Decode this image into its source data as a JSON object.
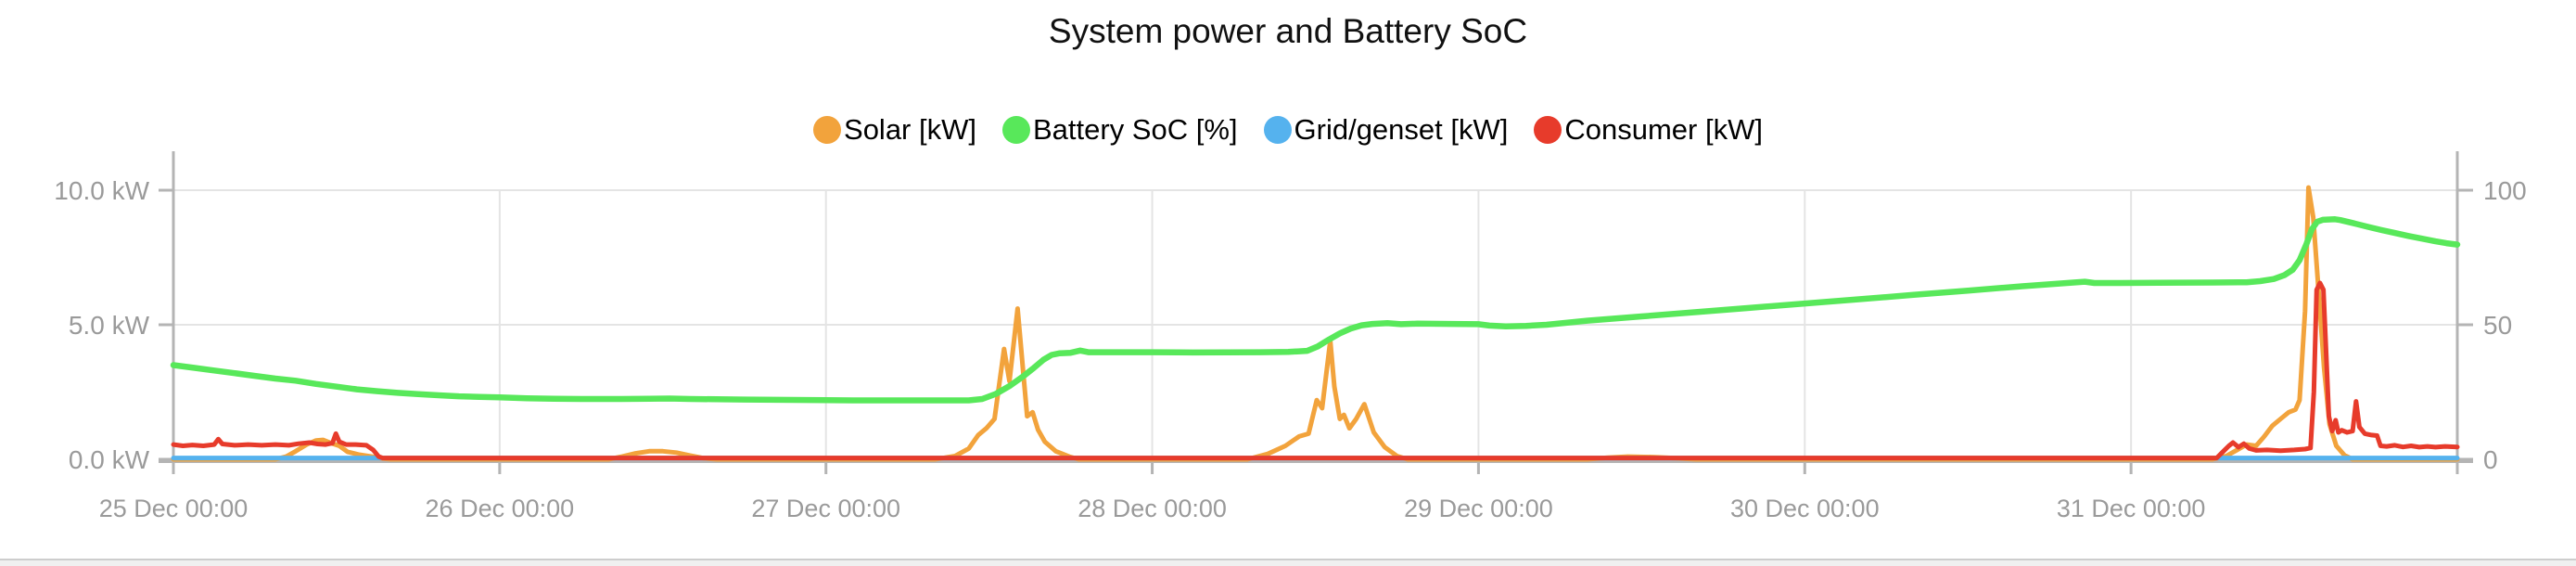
{
  "title": "System power and Battery SoC",
  "legend": {
    "items": [
      {
        "label": "Solar [kW]",
        "color": "#F2A33C"
      },
      {
        "label": "Battery SoC [%]",
        "color": "#58E85A"
      },
      {
        "label": "Grid/genset [kW]",
        "color": "#55B2EE"
      },
      {
        "label": "Consumer [kW]",
        "color": "#E73B2B"
      }
    ]
  },
  "chart_data": {
    "type": "line",
    "title": "System power and Battery SoC",
    "grid": true,
    "legend_position": "top",
    "colors": {
      "grid": "#e4e4e4",
      "axis": "#b4b4b4",
      "tick_label": "#9a9a9a"
    },
    "x_axis": {
      "domain_hours": 168,
      "ticks": [
        {
          "hour": 0,
          "label": "25 Dec 00:00"
        },
        {
          "hour": 24,
          "label": "26 Dec 00:00"
        },
        {
          "hour": 48,
          "label": "27 Dec 00:00"
        },
        {
          "hour": 72,
          "label": "28 Dec 00:00"
        },
        {
          "hour": 96,
          "label": "29 Dec 00:00"
        },
        {
          "hour": 120,
          "label": "30 Dec 00:00"
        },
        {
          "hour": 144,
          "label": "31 Dec 00:00"
        }
      ]
    },
    "left_axis": {
      "unit": "kW",
      "min": 0,
      "max": 10,
      "ticks": [
        {
          "value": 10,
          "label": "10.0 kW"
        },
        {
          "value": 5,
          "label": "5.0 kW"
        },
        {
          "value": 0,
          "label": "0.0 kW"
        }
      ]
    },
    "right_axis": {
      "unit": "%",
      "min": 0,
      "max": 100,
      "ticks": [
        {
          "value": 100,
          "label": "100"
        },
        {
          "value": 50,
          "label": "50"
        },
        {
          "value": 0,
          "label": "0"
        }
      ]
    },
    "series": [
      {
        "name": "Solar [kW]",
        "id": "solar",
        "axis": "left",
        "color": "#F2A33C",
        "width": 5,
        "points": [
          [
            0,
            0
          ],
          [
            7.5,
            0
          ],
          [
            8.3,
            0.1
          ],
          [
            9,
            0.3
          ],
          [
            9.8,
            0.55
          ],
          [
            10.5,
            0.7
          ],
          [
            11,
            0.72
          ],
          [
            11.6,
            0.6
          ],
          [
            12.2,
            0.5
          ],
          [
            12.8,
            0.28
          ],
          [
            13.6,
            0.18
          ],
          [
            14.6,
            0.1
          ],
          [
            15.4,
            0.03
          ],
          [
            16,
            0
          ],
          [
            32,
            0
          ],
          [
            33,
            0.1
          ],
          [
            34,
            0.22
          ],
          [
            35,
            0.3
          ],
          [
            36,
            0.3
          ],
          [
            37,
            0.25
          ],
          [
            38,
            0.14
          ],
          [
            39,
            0.04
          ],
          [
            40,
            0
          ],
          [
            56,
            0
          ],
          [
            57.5,
            0.12
          ],
          [
            58.5,
            0.4
          ],
          [
            59.2,
            0.9
          ],
          [
            59.8,
            1.15
          ],
          [
            60.4,
            1.5
          ],
          [
            61.1,
            4.1
          ],
          [
            61.5,
            2.9
          ],
          [
            62.1,
            5.6
          ],
          [
            62.5,
            3.3
          ],
          [
            62.8,
            1.6
          ],
          [
            63.2,
            1.75
          ],
          [
            63.6,
            1.1
          ],
          [
            64.1,
            0.65
          ],
          [
            64.9,
            0.3
          ],
          [
            65.9,
            0.1
          ],
          [
            66.6,
            0
          ],
          [
            79,
            0
          ],
          [
            80.5,
            0.2
          ],
          [
            81.8,
            0.5
          ],
          [
            82.8,
            0.85
          ],
          [
            83.5,
            0.95
          ],
          [
            84.1,
            2.2
          ],
          [
            84.5,
            1.9
          ],
          [
            85.1,
            4.4
          ],
          [
            85.4,
            2.7
          ],
          [
            85.8,
            1.5
          ],
          [
            86.1,
            1.65
          ],
          [
            86.5,
            1.15
          ],
          [
            87,
            1.5
          ],
          [
            87.6,
            2.05
          ],
          [
            88.3,
            1.0
          ],
          [
            89.1,
            0.45
          ],
          [
            90,
            0.12
          ],
          [
            90.8,
            0
          ],
          [
            104,
            0
          ],
          [
            105.5,
            0.06
          ],
          [
            107,
            0.1
          ],
          [
            109,
            0.08
          ],
          [
            110.5,
            0.04
          ],
          [
            112,
            0
          ],
          [
            150,
            0
          ],
          [
            151,
            0.12
          ],
          [
            151.8,
            0.35
          ],
          [
            152.5,
            0.55
          ],
          [
            153.2,
            0.5
          ],
          [
            153.8,
            0.85
          ],
          [
            154.4,
            1.25
          ],
          [
            155,
            1.5
          ],
          [
            155.6,
            1.75
          ],
          [
            156.1,
            1.85
          ],
          [
            156.4,
            2.2
          ],
          [
            156.8,
            5.5
          ],
          [
            157.05,
            10.1
          ],
          [
            157.4,
            9.0
          ],
          [
            157.8,
            6.2
          ],
          [
            158.2,
            3.4
          ],
          [
            158.6,
            1.3
          ],
          [
            159.1,
            0.5
          ],
          [
            159.7,
            0.15
          ],
          [
            160.3,
            0
          ],
          [
            168,
            0
          ]
        ]
      },
      {
        "name": "Battery SoC [%]",
        "id": "battery-soc",
        "axis": "right",
        "color": "#58E85A",
        "width": 6.5,
        "points": [
          [
            0,
            35
          ],
          [
            1.5,
            34
          ],
          [
            3,
            33
          ],
          [
            4.5,
            32
          ],
          [
            6,
            31
          ],
          [
            7.5,
            30
          ],
          [
            9,
            29.2
          ],
          [
            10.5,
            28
          ],
          [
            12,
            27
          ],
          [
            13.5,
            26
          ],
          [
            15,
            25.3
          ],
          [
            16.5,
            24.7
          ],
          [
            18,
            24.2
          ],
          [
            19.5,
            23.8
          ],
          [
            21,
            23.4
          ],
          [
            22.5,
            23.2
          ],
          [
            24,
            23
          ],
          [
            26,
            22.7
          ],
          [
            28,
            22.5
          ],
          [
            30,
            22.4
          ],
          [
            33,
            22.4
          ],
          [
            35,
            22.5
          ],
          [
            36.5,
            22.6
          ],
          [
            38,
            22.4
          ],
          [
            42,
            22.2
          ],
          [
            48,
            22
          ],
          [
            50,
            21.9
          ],
          [
            56,
            21.9
          ],
          [
            58.5,
            21.9
          ],
          [
            59.5,
            22.4
          ],
          [
            60.5,
            24.3
          ],
          [
            61.5,
            27.2
          ],
          [
            62.5,
            30.8
          ],
          [
            63.3,
            34
          ],
          [
            64,
            37
          ],
          [
            64.6,
            38.8
          ],
          [
            65.2,
            39.4
          ],
          [
            66,
            39.6
          ],
          [
            66.7,
            40.4
          ],
          [
            67.3,
            39.8
          ],
          [
            68,
            39.8
          ],
          [
            72,
            39.8
          ],
          [
            75,
            39.7
          ],
          [
            80,
            39.8
          ],
          [
            82,
            39.9
          ],
          [
            83.4,
            40.3
          ],
          [
            84.2,
            42
          ],
          [
            85,
            44.5
          ],
          [
            85.8,
            46.8
          ],
          [
            86.6,
            48.6
          ],
          [
            87.4,
            49.8
          ],
          [
            88.2,
            50.3
          ],
          [
            89.3,
            50.6
          ],
          [
            90.3,
            50.2
          ],
          [
            91.5,
            50.4
          ],
          [
            94,
            50.3
          ],
          [
            96,
            50.2
          ],
          [
            96.8,
            49.7
          ],
          [
            98,
            49.4
          ],
          [
            99.5,
            49.6
          ],
          [
            101,
            50
          ],
          [
            104,
            51.5
          ],
          [
            108,
            53.1
          ],
          [
            112,
            54.7
          ],
          [
            116,
            56.3
          ],
          [
            120,
            57.9
          ],
          [
            124,
            59.5
          ],
          [
            128,
            61.1
          ],
          [
            132,
            62.7
          ],
          [
            136,
            64.3
          ],
          [
            140,
            65.8
          ],
          [
            140.6,
            66
          ],
          [
            141.3,
            65.5
          ],
          [
            143,
            65.5
          ],
          [
            146,
            65.6
          ],
          [
            150,
            65.7
          ],
          [
            152.5,
            65.8
          ],
          [
            153.5,
            66.2
          ],
          [
            154.5,
            67
          ],
          [
            155.3,
            68.5
          ],
          [
            155.9,
            70.5
          ],
          [
            156.4,
            74
          ],
          [
            156.9,
            80
          ],
          [
            157.3,
            85.5
          ],
          [
            157.7,
            88.3
          ],
          [
            158.1,
            89
          ],
          [
            159,
            89.2
          ],
          [
            159.4,
            88.9
          ],
          [
            160.4,
            87.7
          ],
          [
            161.4,
            86.4
          ],
          [
            162.4,
            85.2
          ],
          [
            163.4,
            84.1
          ],
          [
            164.4,
            83
          ],
          [
            165.4,
            82
          ],
          [
            166.4,
            81
          ],
          [
            167.2,
            80.3
          ],
          [
            168,
            79.8
          ]
        ]
      },
      {
        "name": "Grid/genset [kW]",
        "id": "grid-genset",
        "axis": "left",
        "color": "#55B2EE",
        "width": 5,
        "points": [
          [
            0,
            0.05
          ],
          [
            168,
            0.05
          ]
        ]
      },
      {
        "name": "Consumer [kW]",
        "id": "consumer",
        "axis": "left",
        "color": "#E73B2B",
        "width": 5,
        "points": [
          [
            0,
            0.55
          ],
          [
            0.7,
            0.5
          ],
          [
            1.4,
            0.53
          ],
          [
            2.2,
            0.5
          ],
          [
            3,
            0.55
          ],
          [
            3.3,
            0.75
          ],
          [
            3.6,
            0.57
          ],
          [
            4.5,
            0.52
          ],
          [
            5.5,
            0.55
          ],
          [
            6.5,
            0.52
          ],
          [
            7.5,
            0.55
          ],
          [
            8.5,
            0.52
          ],
          [
            9.2,
            0.58
          ],
          [
            10,
            0.62
          ],
          [
            10.6,
            0.57
          ],
          [
            11.2,
            0.55
          ],
          [
            11.7,
            0.6
          ],
          [
            11.95,
            0.95
          ],
          [
            12.2,
            0.65
          ],
          [
            12.7,
            0.55
          ],
          [
            13.4,
            0.55
          ],
          [
            14.2,
            0.52
          ],
          [
            14.7,
            0.35
          ],
          [
            15.1,
            0.1
          ],
          [
            15.4,
            0.05
          ],
          [
            16,
            0.05
          ],
          [
            40,
            0.05
          ],
          [
            80,
            0.05
          ],
          [
            120,
            0.05
          ],
          [
            150.3,
            0.05
          ],
          [
            150.8,
            0.3
          ],
          [
            151.2,
            0.5
          ],
          [
            151.5,
            0.62
          ],
          [
            151.9,
            0.45
          ],
          [
            152.3,
            0.58
          ],
          [
            152.7,
            0.4
          ],
          [
            153.2,
            0.33
          ],
          [
            154,
            0.35
          ],
          [
            155,
            0.32
          ],
          [
            156,
            0.35
          ],
          [
            156.8,
            0.38
          ],
          [
            157.2,
            0.42
          ],
          [
            157.45,
            2.5
          ],
          [
            157.65,
            6.3
          ],
          [
            157.9,
            6.55
          ],
          [
            158.15,
            6.3
          ],
          [
            158.35,
            4
          ],
          [
            158.55,
            1.6
          ],
          [
            158.8,
            1.05
          ],
          [
            159.05,
            1.45
          ],
          [
            159.25,
            1.0
          ],
          [
            159.5,
            1.08
          ],
          [
            159.9,
            1.0
          ],
          [
            160.3,
            1.05
          ],
          [
            160.55,
            2.15
          ],
          [
            160.8,
            1.2
          ],
          [
            161.2,
            0.95
          ],
          [
            161.7,
            0.9
          ],
          [
            162.1,
            0.88
          ],
          [
            162.35,
            0.5
          ],
          [
            162.8,
            0.48
          ],
          [
            163.4,
            0.52
          ],
          [
            164,
            0.46
          ],
          [
            164.6,
            0.5
          ],
          [
            165.2,
            0.45
          ],
          [
            165.8,
            0.48
          ],
          [
            166.4,
            0.45
          ],
          [
            167.1,
            0.48
          ],
          [
            168,
            0.46
          ]
        ]
      }
    ]
  }
}
